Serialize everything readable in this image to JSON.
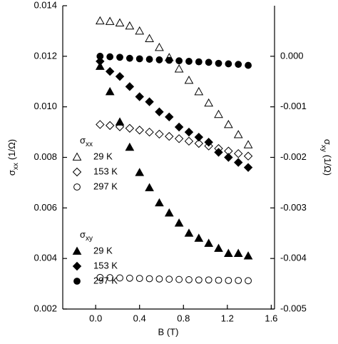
{
  "chart_data": {
    "type": "scatter",
    "xlabel": "B (T)",
    "ylabel": {
      "symbol": "σ",
      "sub": "xx",
      "unit": "(1/Ω)"
    },
    "y2label": {
      "symbol": "σ",
      "sub": "xy",
      "unit": "(1/Ω)"
    },
    "xlim": [
      -0.3,
      1.63
    ],
    "ylim": [
      0.002,
      0.014
    ],
    "y2lim": [
      -0.005,
      0.001
    ],
    "xticks": [
      {
        "value": 0,
        "label": "0.0"
      },
      0.4,
      0.8,
      1.2,
      1.6
    ],
    "yticks": [
      0.002,
      0.004,
      0.006,
      0.008,
      {
        "value": 0.01,
        "label": "0.010"
      },
      0.012,
      0.014
    ],
    "y2ticks": [
      -0.005,
      -0.004,
      -0.003,
      -0.002,
      -0.001,
      {
        "value": 0,
        "label": "0.000"
      }
    ],
    "x": [
      0.04,
      0.13,
      0.22,
      0.31,
      0.4,
      0.49,
      0.58,
      0.67,
      0.76,
      0.85,
      0.94,
      1.03,
      1.12,
      1.21,
      1.3,
      1.39
    ],
    "legend_groups": [
      {
        "symbol": "σ",
        "sub": "xx"
      },
      {
        "symbol": "σ",
        "sub": "xy"
      }
    ],
    "series": [
      {
        "name": "29 K",
        "group": 0,
        "marker": "triangle",
        "filled": false,
        "color": "#000000",
        "values": [
          0.0134,
          0.01338,
          0.01332,
          0.0132,
          0.013,
          0.0127,
          0.01235,
          0.01195,
          0.0115,
          0.01105,
          0.0106,
          0.01015,
          0.0097,
          0.0093,
          0.0089,
          0.0085
        ]
      },
      {
        "name": "153 K",
        "group": 0,
        "marker": "diamond",
        "filled": false,
        "color": "#000000",
        "values": [
          0.0093,
          0.00926,
          0.00921,
          0.00915,
          0.00908,
          0.009,
          0.00892,
          0.00883,
          0.00874,
          0.00864,
          0.00855,
          0.00845,
          0.00835,
          0.00825,
          0.00815,
          0.00805
        ]
      },
      {
        "name": "297 K",
        "group": 0,
        "marker": "circle",
        "filled": false,
        "color": "#000000",
        "values": [
          0.00325,
          0.00324,
          0.00323,
          0.00322,
          0.00321,
          0.0032,
          0.00319,
          0.00318,
          0.00317,
          0.00316,
          0.00315,
          0.00315,
          0.00314,
          0.00313,
          0.00313,
          0.00312
        ]
      },
      {
        "name": "29 K",
        "group": 1,
        "axis": "y2",
        "marker": "triangle",
        "filled": true,
        "color": "#000000",
        "values": [
          -0.0002,
          -0.0007,
          -0.0013,
          -0.0018,
          -0.0023,
          -0.0026,
          -0.0029,
          -0.0031,
          -0.0033,
          -0.0035,
          -0.0036,
          -0.0037,
          -0.0038,
          -0.0039,
          -0.0039,
          -0.00395
        ]
      },
      {
        "name": "153 K",
        "group": 1,
        "axis": "y2",
        "marker": "diamond",
        "filled": true,
        "color": "#000000",
        "values": [
          -0.0001,
          -0.0003,
          -0.0004,
          -0.0006,
          -0.0008,
          -0.0009,
          -0.0011,
          -0.0012,
          -0.0014,
          -0.0015,
          -0.0016,
          -0.0017,
          -0.0019,
          -0.002,
          -0.0021,
          -0.0022
        ]
      },
      {
        "name": "297 K",
        "group": 1,
        "axis": "y2",
        "marker": "circle",
        "filled": true,
        "color": "#000000",
        "values": [
          0.0,
          -1e-05,
          -2e-05,
          -4e-05,
          -5e-05,
          -6e-05,
          -7e-05,
          -8e-05,
          -9e-05,
          -0.0001,
          -0.00011,
          -0.00012,
          -0.00014,
          -0.00015,
          -0.00016,
          -0.00018
        ]
      }
    ]
  }
}
